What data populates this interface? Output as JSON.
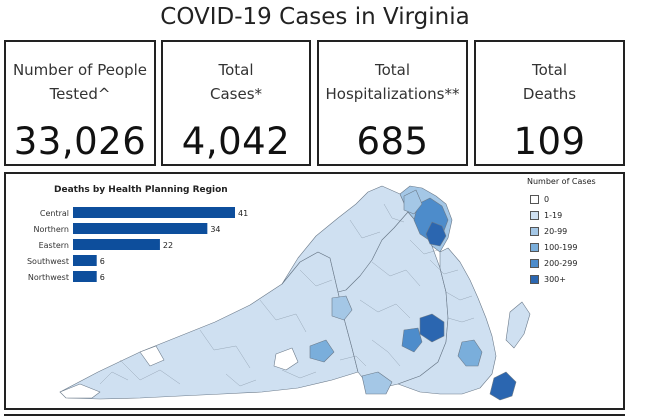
{
  "page": {
    "title": "COVID-19 Cases in Virginia"
  },
  "stats": [
    {
      "label": "Number of People\nTested^",
      "value": "33,026"
    },
    {
      "label": "Total\nCases*",
      "value": "4,042"
    },
    {
      "label": "Total\nHospitalizations**",
      "value": "685"
    },
    {
      "label": "Total\nDeaths",
      "value": "109"
    }
  ],
  "chart_data": {
    "type": "bar",
    "title": "Deaths by Health Planning Region",
    "orientation": "horizontal",
    "categories": [
      "Central",
      "Northern",
      "Eastern",
      "Southwest",
      "Northwest"
    ],
    "values": [
      41,
      34,
      22,
      6,
      6
    ],
    "color": "#0d4e9c",
    "xlim": [
      0,
      41
    ]
  },
  "map": {
    "legend_title": "Number of Cases",
    "legend": [
      {
        "label": "0",
        "color": "#ffffff"
      },
      {
        "label": "1-19",
        "color": "#cfe0f1"
      },
      {
        "label": "20-99",
        "color": "#a4c7e6"
      },
      {
        "label": "100-199",
        "color": "#7aaedb"
      },
      {
        "label": "200-299",
        "color": "#4d8ccb"
      },
      {
        "label": "300+",
        "color": "#2b66b0"
      }
    ]
  }
}
